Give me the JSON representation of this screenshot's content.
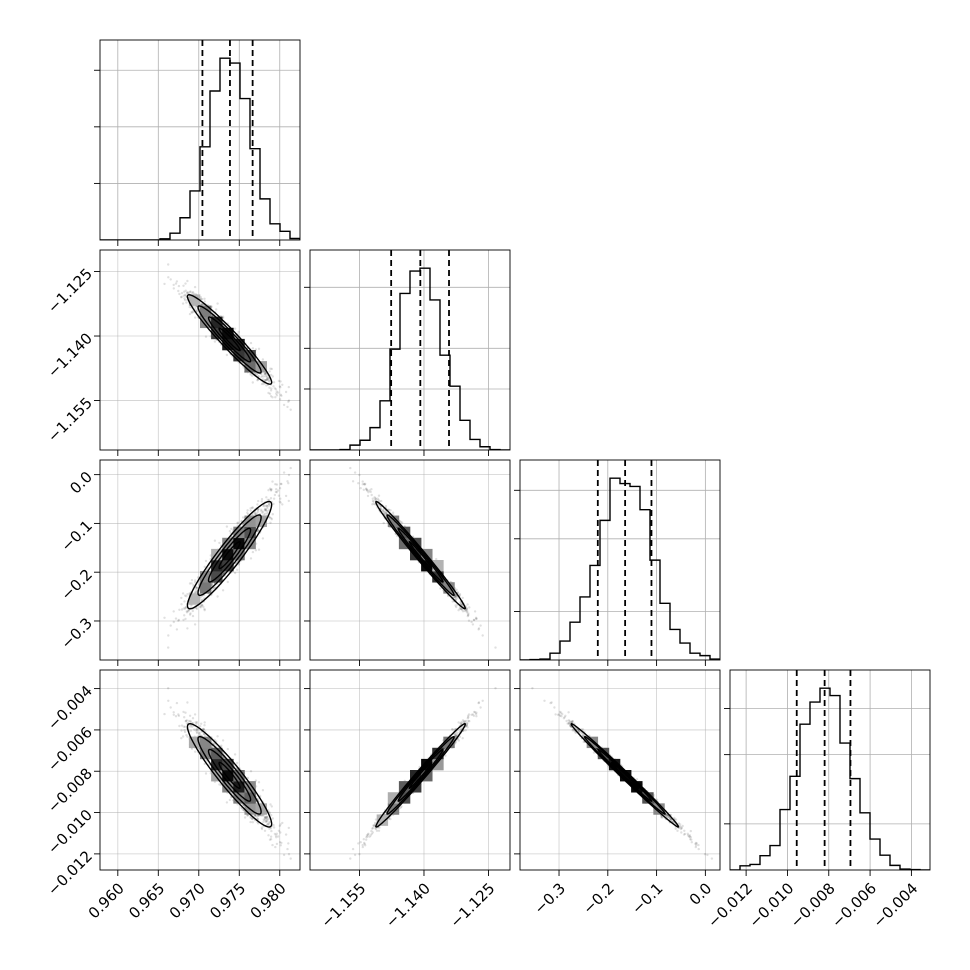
{
  "chart_data": {
    "type": "corner",
    "title": "",
    "grid": true,
    "params": [
      {
        "label": "",
        "range": [
          0.9578,
          0.9825
        ],
        "mean": 0.9738,
        "sd": 0.0026,
        "quantiles": [
          0.97045,
          0.97385,
          0.97665
        ],
        "ticks": [
          0.96,
          0.965,
          0.97,
          0.975,
          0.98
        ],
        "tick_labels": [
          "0.960",
          "0.965",
          "0.970",
          "0.975",
          "0.980"
        ]
      },
      {
        "label": "",
        "range": [
          -1.1665,
          -1.12
        ],
        "mean": -1.1408,
        "sd": 0.0052,
        "quantiles": [
          -1.14763,
          -1.14085,
          -1.13418
        ],
        "ticks": [
          -1.155,
          -1.14,
          -1.125
        ],
        "tick_labels": [
          "−1.155",
          "−1.140",
          "−1.125"
        ]
      },
      {
        "label": "",
        "range": [
          -0.38,
          0.03
        ],
        "mean": -0.165,
        "sd": 0.055,
        "quantiles": [
          -0.2205,
          -0.1645,
          -0.1105
        ],
        "ticks": [
          -0.3,
          -0.2,
          -0.1,
          0.0
        ],
        "tick_labels": [
          "−0.3",
          "−0.2",
          "−0.1",
          "0.0"
        ]
      },
      {
        "label": "",
        "range": [
          -0.01278,
          -0.0031
        ],
        "mean": -0.0082,
        "sd": 0.00125,
        "quantiles": [
          -0.00955,
          -0.0082,
          -0.00695
        ],
        "ticks": [
          -0.012,
          -0.01,
          -0.008,
          -0.006,
          -0.004
        ],
        "tick_labels": [
          "−0.012",
          "−0.010",
          "−0.008",
          "−0.006",
          "−0.004"
        ]
      }
    ],
    "y_tick_labels": {
      "row1": [
        "−1.125",
        "−1.140",
        "−1.155"
      ],
      "row2": [
        "0.0",
        "−0.1",
        "−0.2",
        "−0.3"
      ],
      "row3": [
        "−0.004",
        "−0.006",
        "−0.008",
        "−0.010",
        "−0.012"
      ]
    },
    "correlations": [
      [
        1.0,
        -0.96,
        0.94,
        -0.94
      ],
      [
        -0.96,
        1.0,
        -0.99,
        0.99
      ],
      [
        0.94,
        -0.99,
        1.0,
        -0.995
      ],
      [
        -0.94,
        0.99,
        -0.995,
        1.0
      ]
    ],
    "histogram_bins": 20,
    "contour_levels": 3,
    "colors": {
      "points": "#000000",
      "contours": "#000000",
      "histogram": "#000000",
      "grid": "#b0b0b0"
    }
  }
}
